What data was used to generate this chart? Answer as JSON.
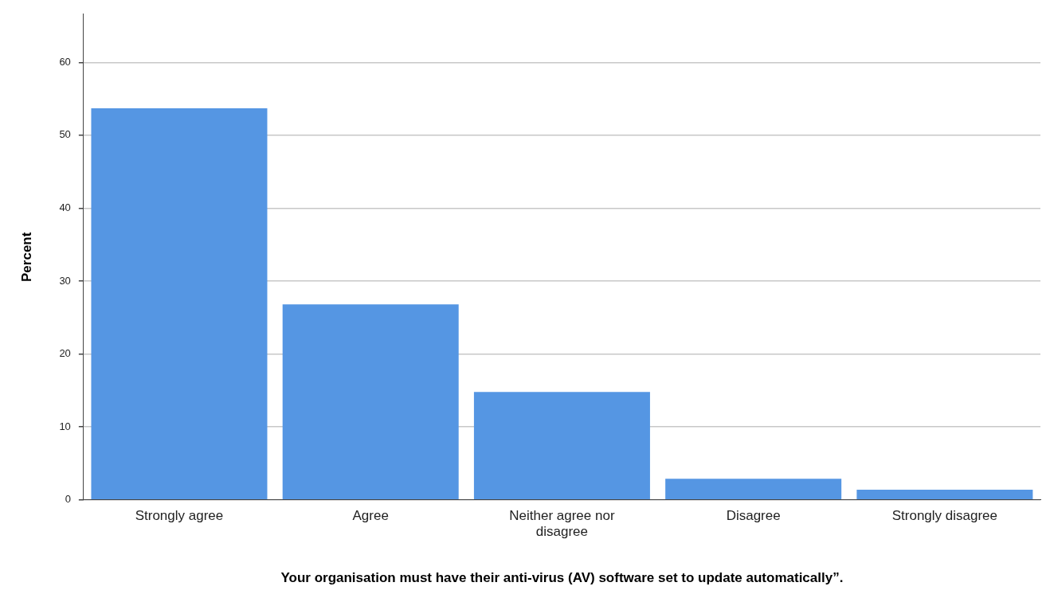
{
  "chart_data": {
    "type": "bar",
    "xlabel": "Your organisation must have their anti-virus (AV) software set to update automatically”.",
    "ylabel": "Percent",
    "categories": [
      "Strongly agree",
      "Agree",
      "Neither agree nor disagree",
      "Disagree",
      "Strongly disagree"
    ],
    "values": [
      53.7,
      26.8,
      14.8,
      2.9,
      1.4
    ],
    "color": "#5596e3",
    "ylim": [
      0,
      66.6
    ],
    "yticks": [
      0,
      10,
      20,
      30,
      40,
      50,
      60
    ],
    "grid": "y",
    "legend": false
  }
}
